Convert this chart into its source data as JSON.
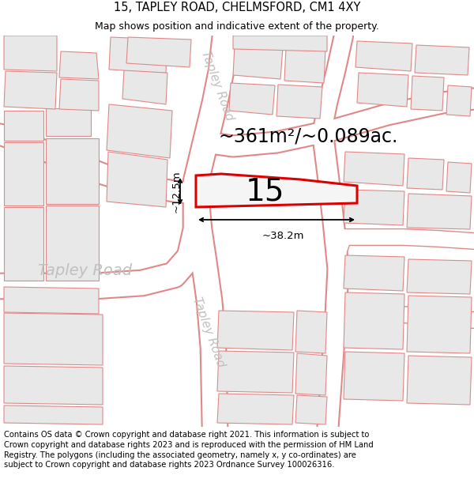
{
  "title_line1": "15, TAPLEY ROAD, CHELMSFORD, CM1 4XY",
  "title_line2": "Map shows position and indicative extent of the property.",
  "footer_text": "Contains OS data © Crown copyright and database right 2021. This information is subject to Crown copyright and database rights 2023 and is reproduced with the permission of HM Land Registry. The polygons (including the associated geometry, namely x, y co-ordinates) are subject to Crown copyright and database rights 2023 Ordnance Survey 100026316.",
  "area_label": "~361m²/~0.089ac.",
  "number_label": "15",
  "dim_width": "~38.2m",
  "dim_height": "~12.5m",
  "map_bg": "#f7f7f7",
  "road_color": "#ffffff",
  "building_fill": "#e8e8e8",
  "building_edge": "#e08888",
  "road_line_color": "#e08888",
  "highlight_fill": "#f5f5f5",
  "highlight_edge": "#dd0000",
  "title_fontsize": 10.5,
  "subtitle_fontsize": 9,
  "footer_fontsize": 7.2,
  "area_fontsize": 17,
  "number_fontsize": 28,
  "dim_fontsize": 9.5,
  "road_label_color": "#c0c0c0",
  "road_label_fontsize": 11,
  "tapley_road_horiz_fontsize": 14
}
